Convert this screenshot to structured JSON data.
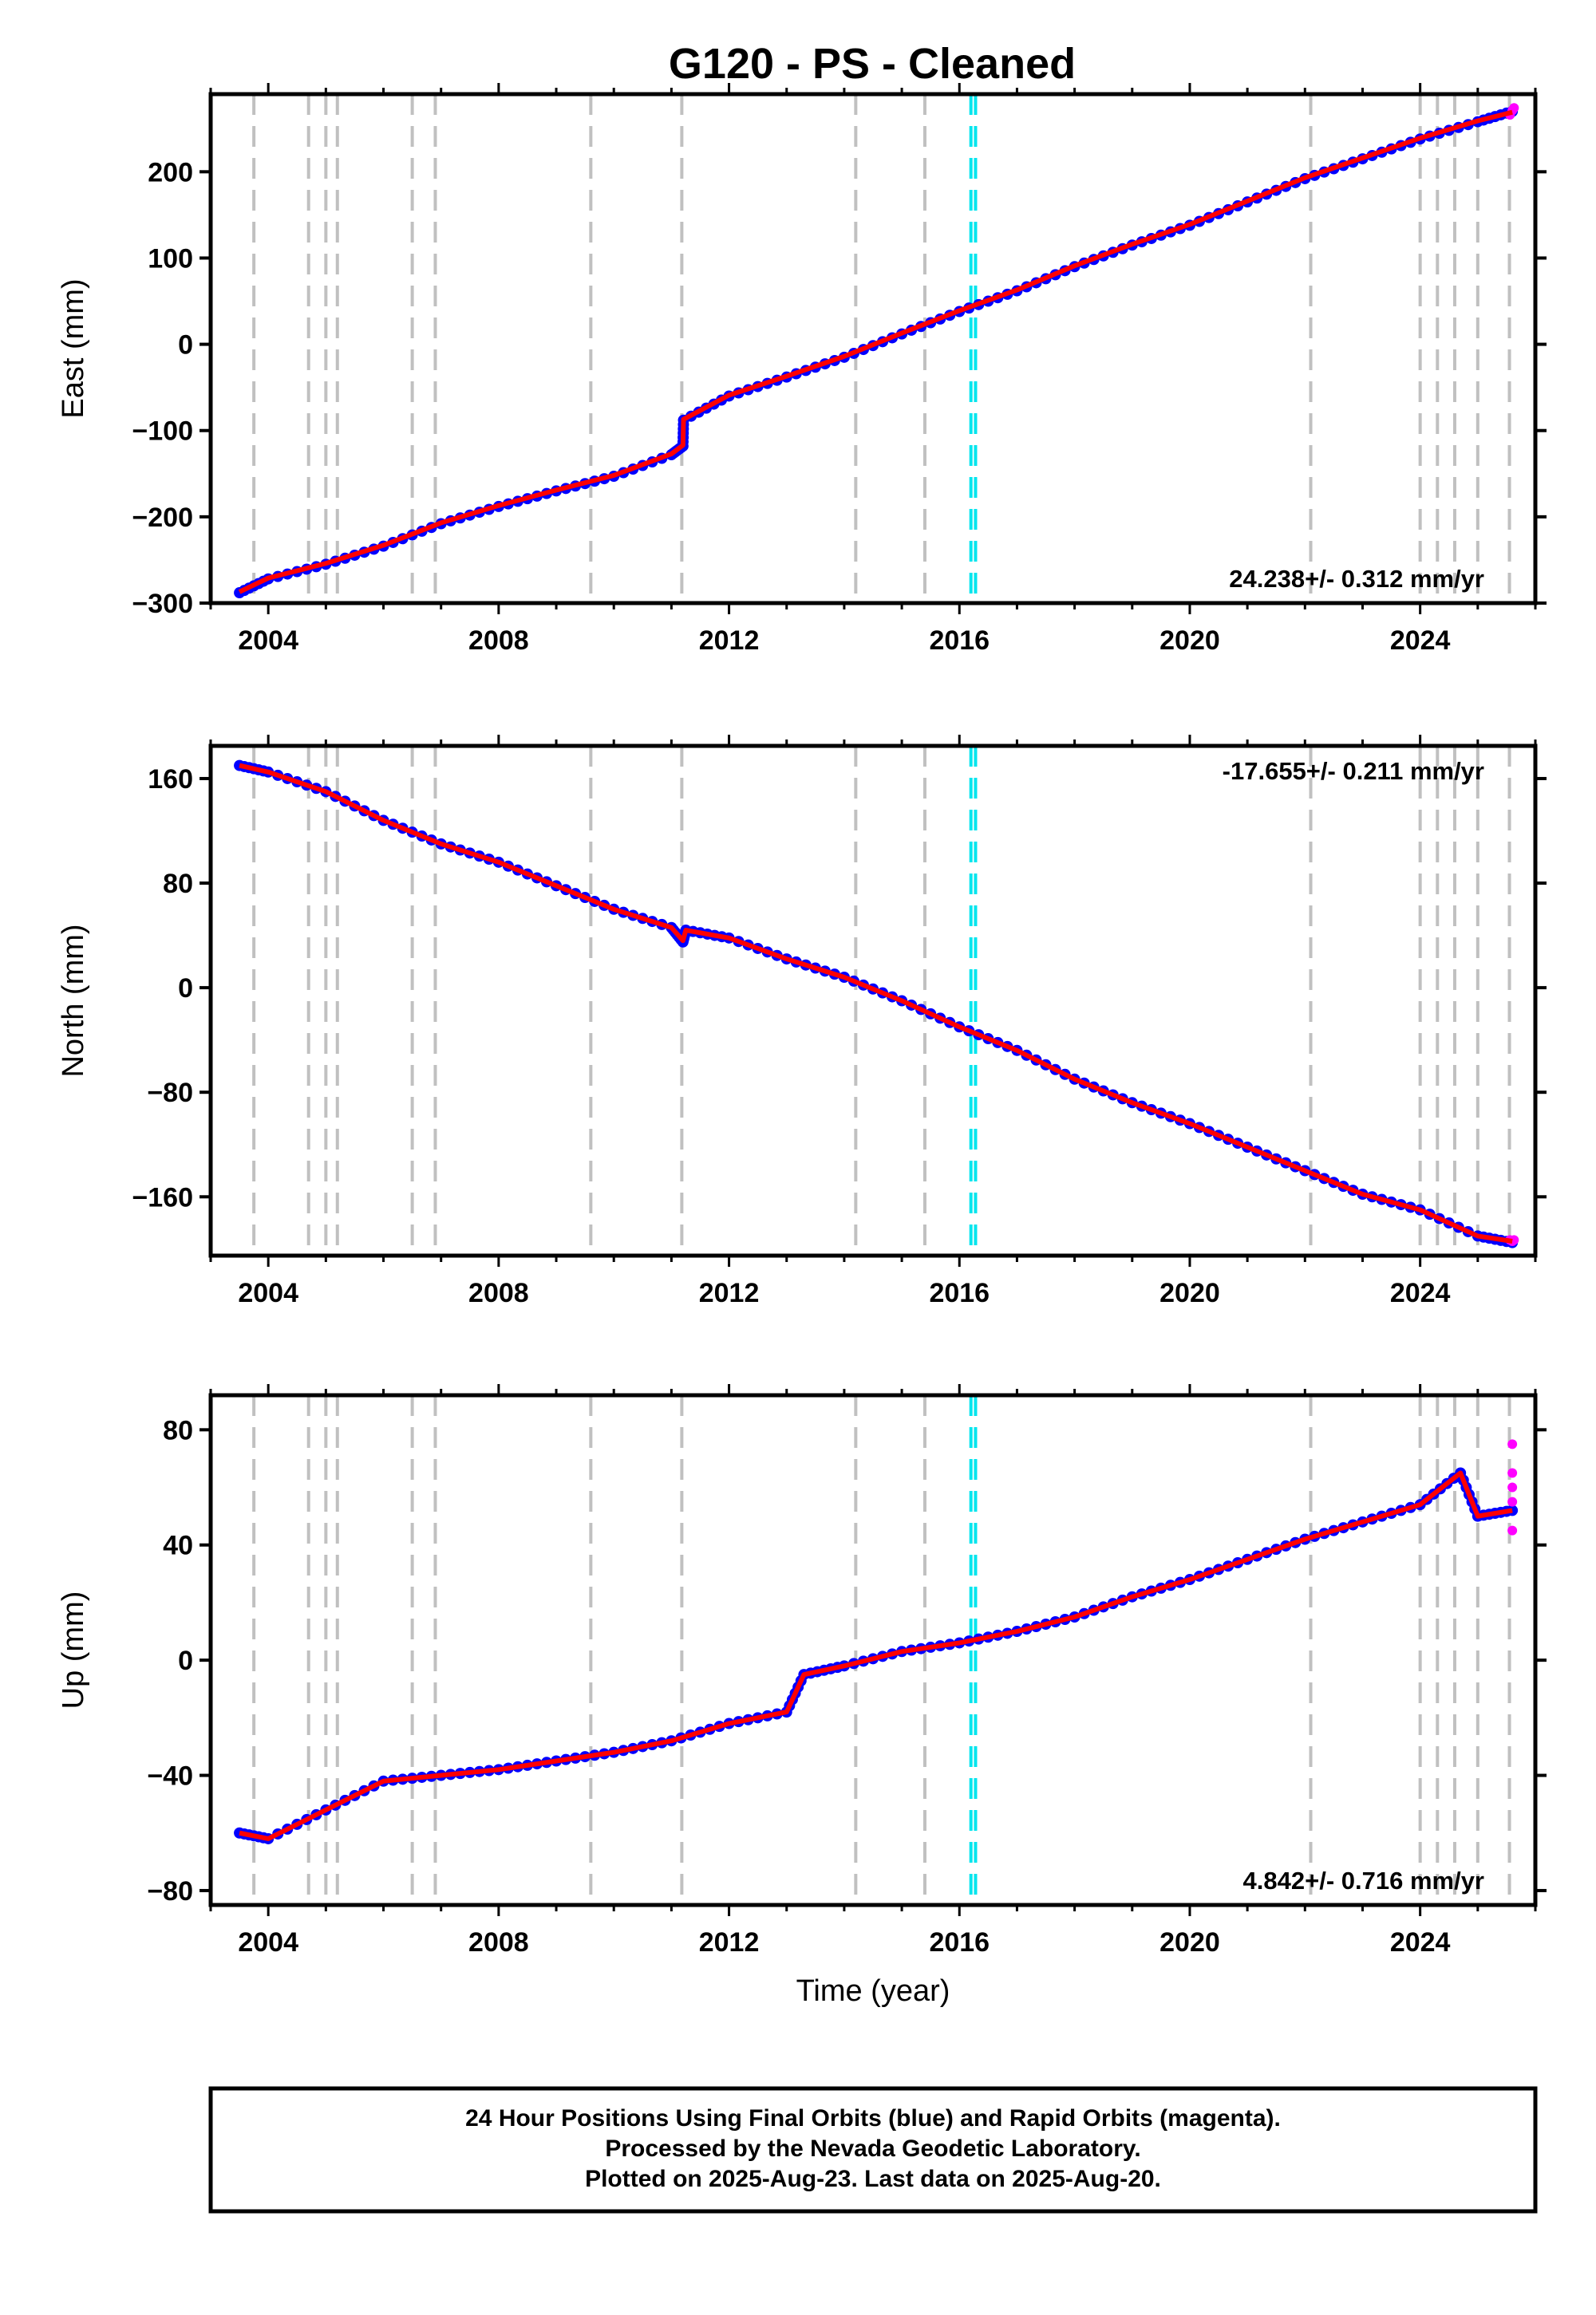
{
  "chart_data": [
    {
      "type": "scatter",
      "panel": "east",
      "ylabel": "East (mm)",
      "xlim": [
        2003.0,
        2026.0
      ],
      "ylim": [
        -300,
        290
      ],
      "yticks": [
        -300,
        -200,
        -100,
        0,
        100,
        200
      ],
      "xticks": [
        2004,
        2008,
        2012,
        2016,
        2020,
        2024
      ],
      "rate_label": "24.238+/- 0.312 mm/yr",
      "rate_position": "bottom-right",
      "grid": false,
      "series": [
        {
          "name": "Final Orbits",
          "color": "#0000ff",
          "x": [
            2003.5,
            2004.0,
            2005.0,
            2006.0,
            2007.0,
            2008.0,
            2009.0,
            2010.0,
            2011.0,
            2011.2,
            2011.21,
            2012.0,
            2013.0,
            2014.0,
            2015.0,
            2016.0,
            2017.0,
            2018.0,
            2019.0,
            2020.0,
            2021.0,
            2022.0,
            2023.0,
            2024.0,
            2025.0,
            2025.6
          ],
          "y": [
            -288,
            -272,
            -255,
            -234,
            -208,
            -188,
            -170,
            -153,
            -128,
            -118,
            -88,
            -60,
            -38,
            -15,
            12,
            38,
            62,
            90,
            115,
            138,
            165,
            192,
            215,
            238,
            258,
            270
          ]
        },
        {
          "name": "Rapid Orbits",
          "color": "#ff00ff",
          "x": [
            2025.56,
            2025.6,
            2025.63
          ],
          "y": [
            266,
            271,
            274
          ]
        }
      ],
      "model": {
        "color": "#ff0000",
        "x": [
          2003.5,
          2004.0,
          2005.0,
          2006.0,
          2007.0,
          2008.0,
          2009.0,
          2010.0,
          2011.0,
          2011.2,
          2011.21,
          2012.0,
          2013.0,
          2014.0,
          2015.0,
          2016.0,
          2017.0,
          2018.0,
          2019.0,
          2020.0,
          2021.0,
          2022.0,
          2023.0,
          2024.0,
          2025.0,
          2025.6
        ],
        "y": [
          -287,
          -271,
          -254,
          -233,
          -207,
          -187,
          -169,
          -152,
          -127,
          -117,
          -87,
          -59,
          -37,
          -14,
          13,
          39,
          63,
          91,
          116,
          139,
          166,
          193,
          216,
          239,
          259,
          269
        ]
      }
    },
    {
      "type": "scatter",
      "panel": "north",
      "ylabel": "North (mm)",
      "xlim": [
        2003.0,
        2026.0
      ],
      "ylim": [
        -205,
        185
      ],
      "yticks": [
        -160,
        -80,
        0,
        80,
        160
      ],
      "xticks": [
        2004,
        2008,
        2012,
        2016,
        2020,
        2024
      ],
      "rate_label": "-17.655+/- 0.211 mm/yr",
      "rate_position": "top-right",
      "grid": false,
      "series": [
        {
          "name": "Final Orbits",
          "color": "#0000ff",
          "x": [
            2003.5,
            2004.0,
            2005.0,
            2006.0,
            2007.0,
            2008.0,
            2009.0,
            2010.0,
            2011.0,
            2011.2,
            2011.25,
            2012.0,
            2013.0,
            2014.0,
            2015.0,
            2016.0,
            2017.0,
            2018.0,
            2019.0,
            2020.0,
            2021.0,
            2022.0,
            2023.0,
            2024.0,
            2025.0,
            2025.6
          ],
          "y": [
            170,
            165,
            150,
            128,
            110,
            96,
            78,
            60,
            46,
            35,
            44,
            38,
            22,
            8,
            -10,
            -30,
            -48,
            -70,
            -88,
            -104,
            -122,
            -140,
            -158,
            -170,
            -190,
            -195
          ]
        },
        {
          "name": "Rapid Orbits",
          "color": "#ff00ff",
          "x": [
            2025.56,
            2025.6,
            2025.63
          ],
          "y": [
            -193,
            -194,
            -193
          ]
        }
      ],
      "model": {
        "color": "#ff0000",
        "x": [
          2003.5,
          2004.0,
          2005.0,
          2006.0,
          2007.0,
          2008.0,
          2009.0,
          2010.0,
          2011.0,
          2011.2,
          2011.25,
          2012.0,
          2013.0,
          2014.0,
          2015.0,
          2016.0,
          2017.0,
          2018.0,
          2019.0,
          2020.0,
          2021.0,
          2022.0,
          2023.0,
          2024.0,
          2025.0,
          2025.6
        ],
        "y": [
          170,
          165,
          150,
          128,
          110,
          96,
          78,
          60,
          46,
          36,
          44,
          38,
          22,
          8,
          -10,
          -30,
          -48,
          -70,
          -88,
          -104,
          -122,
          -140,
          -158,
          -170,
          -190,
          -194
        ]
      }
    },
    {
      "type": "scatter",
      "panel": "up",
      "ylabel": "Up (mm)",
      "xlabel": "Time (year)",
      "xlim": [
        2003.0,
        2026.0
      ],
      "ylim": [
        -85,
        92
      ],
      "yticks": [
        -80,
        -40,
        0,
        40,
        80
      ],
      "xticks": [
        2004,
        2008,
        2012,
        2016,
        2020,
        2024
      ],
      "rate_label": "4.842+/- 0.716 mm/yr",
      "rate_position": "bottom-right",
      "grid": false,
      "series": [
        {
          "name": "Final Orbits",
          "color": "#0000ff",
          "x": [
            2003.5,
            2004.0,
            2005.0,
            2006.0,
            2007.0,
            2008.0,
            2009.0,
            2010.0,
            2011.0,
            2012.0,
            2013.0,
            2013.3,
            2014.0,
            2015.0,
            2016.0,
            2017.0,
            2018.0,
            2019.0,
            2020.0,
            2021.0,
            2022.0,
            2023.0,
            2024.0,
            2024.7,
            2025.0,
            2025.6
          ],
          "y": [
            -60,
            -62,
            -52,
            -42,
            -40,
            -38,
            -35,
            -32,
            -28,
            -22,
            -18,
            -5,
            -2,
            3,
            6,
            10,
            15,
            22,
            28,
            35,
            42,
            48,
            54,
            65,
            50,
            52
          ]
        },
        {
          "name": "Rapid Orbits",
          "color": "#ff00ff",
          "x": [
            2025.6,
            2025.6,
            2025.6,
            2025.6,
            2025.6
          ],
          "y": [
            75,
            65,
            60,
            55,
            45
          ]
        }
      ],
      "model": {
        "color": "#ff0000",
        "x": [
          2003.5,
          2004.0,
          2005.0,
          2006.0,
          2007.0,
          2008.0,
          2009.0,
          2010.0,
          2011.0,
          2012.0,
          2013.0,
          2013.3,
          2014.0,
          2015.0,
          2016.0,
          2017.0,
          2018.0,
          2019.0,
          2020.0,
          2021.0,
          2022.0,
          2023.0,
          2024.0,
          2024.7,
          2025.0,
          2025.6
        ],
        "y": [
          -60,
          -62,
          -52,
          -42,
          -40,
          -38,
          -35,
          -32,
          -28,
          -22,
          -18,
          -5,
          -2,
          3,
          6,
          10,
          15,
          22,
          28,
          35,
          42,
          48,
          54,
          65,
          50,
          52
        ]
      }
    }
  ],
  "figure": {
    "title": "G120  - PS - Cleaned",
    "gray_event_lines": [
      2003.75,
      2004.7,
      2005.0,
      2005.2,
      2006.5,
      2006.9,
      2009.6,
      2011.18,
      2014.2,
      2015.4,
      2022.1,
      2024.0,
      2024.3,
      2024.6,
      2025.0,
      2025.55
    ],
    "cyan_event_lines": [
      2016.2,
      2016.28
    ],
    "gray_line_color": "#c0c0c0",
    "cyan_line_color": "#00e5ee"
  },
  "footer": {
    "line1": "24 Hour Positions Using Final Orbits (blue) and Rapid Orbits (magenta).",
    "line2": "Processed by the Nevada Geodetic Laboratory.",
    "line3": "Plotted on 2025-Aug-23. Last data on 2025-Aug-20."
  }
}
